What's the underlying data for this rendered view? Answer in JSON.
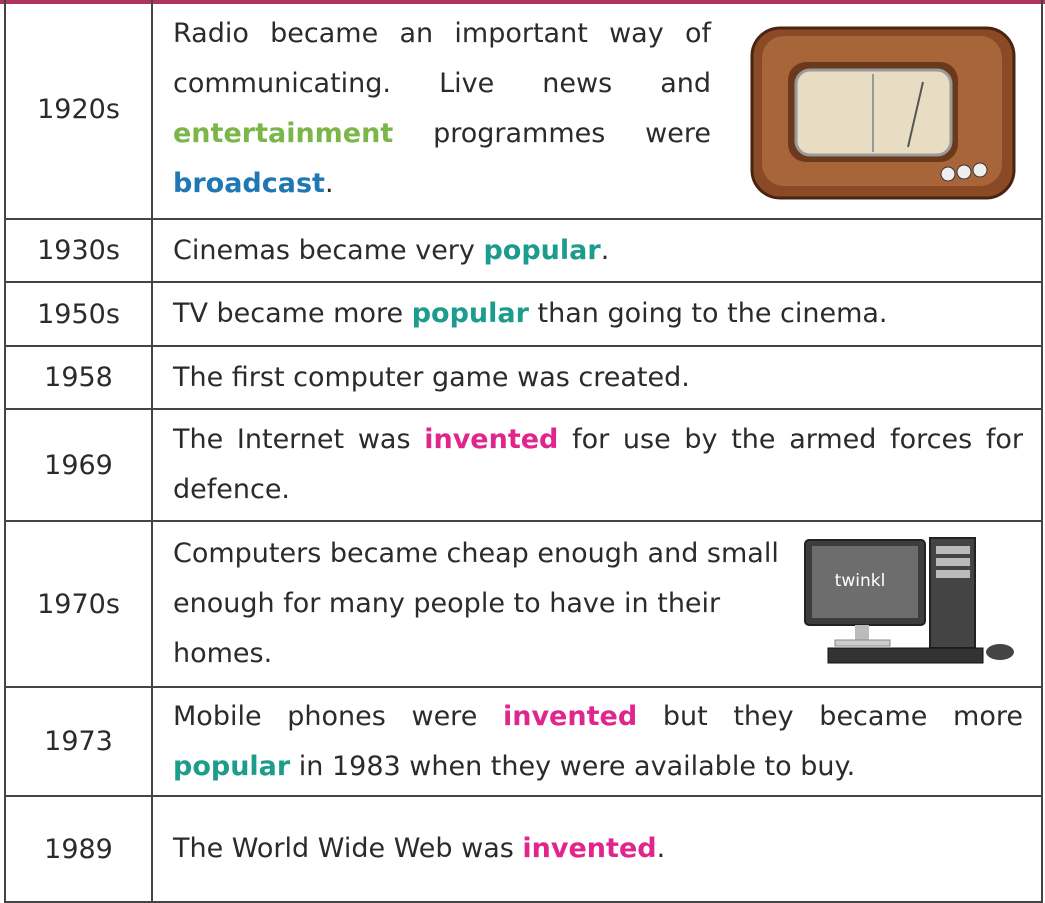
{
  "table": {
    "rows": [
      {
        "year": "1920s",
        "text": [
          "Radio became an important way of communicating. Live news and ",
          {
            "text": "entertainment",
            "color": "#7ab648"
          },
          " programmes were ",
          {
            "text": "broadcast",
            "color": "#1f78b4"
          },
          "."
        ]
      },
      {
        "year": "1930s",
        "text": [
          "Cinemas became very ",
          {
            "text": "popular",
            "color": "#1c9c8c"
          },
          "."
        ]
      },
      {
        "year": "1950s",
        "text": [
          "TV became more ",
          {
            "text": "popular",
            "color": "#1c9c8c"
          },
          " than going to the cinema."
        ]
      },
      {
        "year": "1958",
        "text": [
          "The first computer game was created."
        ]
      },
      {
        "year": "1969",
        "text": [
          "The Internet was ",
          {
            "text": "invented",
            "color": "#e0268c"
          },
          " for use by the armed forces for defence."
        ]
      },
      {
        "year": "1970s",
        "text": [
          "Computers became cheap enough and small enough for many people to have in their homes."
        ]
      },
      {
        "year": "1973",
        "text": [
          "Mobile phones were ",
          {
            "text": "invented",
            "color": "#e0268c"
          },
          " but they became more ",
          {
            "text": "popular",
            "color": "#1c9c8c"
          },
          " in 1983 when they were available to buy."
        ]
      },
      {
        "year": "1989",
        "text": [
          "The World Wide Web was ",
          {
            "text": "invented",
            "color": "#e0268c"
          },
          "."
        ]
      }
    ]
  },
  "logo": "twinkl"
}
